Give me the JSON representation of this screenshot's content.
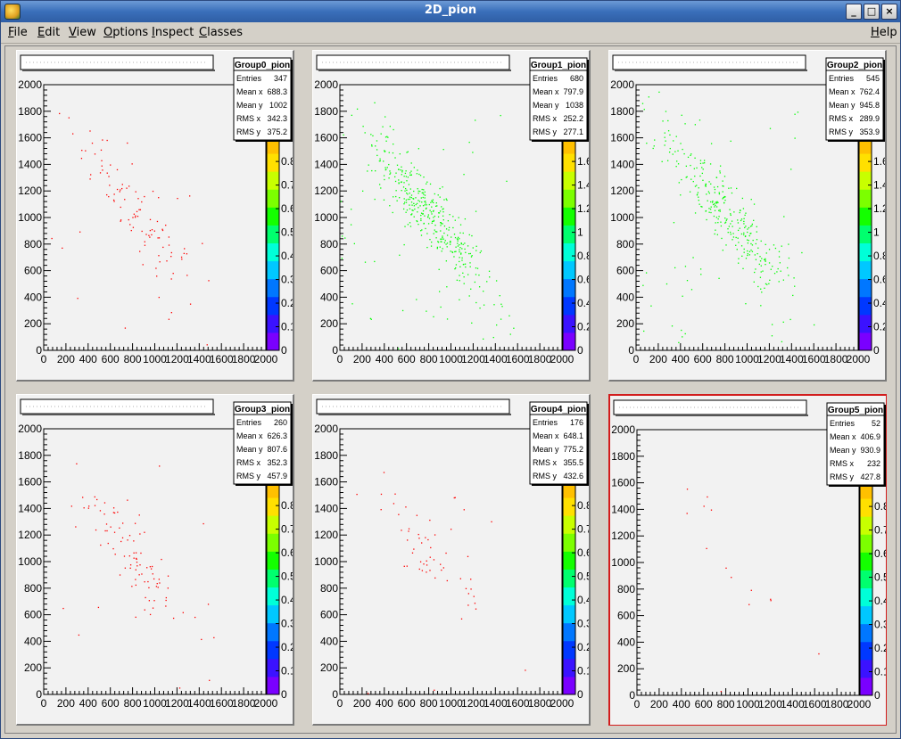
{
  "window": {
    "title": "2D_pion",
    "buttons": {
      "minimize": "_",
      "maximize": "□",
      "close": "×"
    }
  },
  "menubar": {
    "items": [
      {
        "label": "File",
        "underline": "F",
        "rest": "ile"
      },
      {
        "label": "Edit",
        "underline": "E",
        "rest": "dit"
      },
      {
        "label": "View",
        "underline": "V",
        "rest": "iew"
      },
      {
        "label": "Options",
        "underline": "O",
        "rest": "ptions"
      },
      {
        "label": "Inspect",
        "underline": "I",
        "rest": "nspect"
      },
      {
        "label": "Classes",
        "underline": "C",
        "rest": "lasses"
      }
    ],
    "help": {
      "label": "Help",
      "underline": "H",
      "rest": "elp"
    }
  },
  "colors": {
    "red_points": "#ff0000",
    "green_points": "#00ff00",
    "selected_pad_border": "#d21c1c"
  },
  "axis_ticks": [
    "0",
    "200",
    "400",
    "600",
    "800",
    "1000",
    "1200",
    "1400",
    "1600",
    "1800",
    "2000"
  ],
  "pads": [
    {
      "stats": {
        "title": "Group0_pion",
        "rows": [
          [
            "Entries",
            "347"
          ],
          [
            "Mean x",
            "688.3"
          ],
          [
            "Mean y",
            "1002"
          ],
          [
            "RMS x",
            "342.3"
          ],
          [
            "RMS y",
            "375.2"
          ]
        ]
      },
      "cbar_labels": [
        "0",
        "0.1",
        "0.2",
        "0.3",
        "0.4",
        "0.5",
        "0.6",
        "0.7",
        "0.8"
      ],
      "point_color": "#ff0000",
      "selected": false
    },
    {
      "stats": {
        "title": "Group1_pion",
        "rows": [
          [
            "Entries",
            "680"
          ],
          [
            "Mean x",
            "797.9"
          ],
          [
            "Mean y",
            "1038"
          ],
          [
            "RMS x",
            "252.2"
          ],
          [
            "RMS y",
            "277.1"
          ]
        ]
      },
      "cbar_labels": [
        "0",
        "0.2",
        "0.4",
        "0.6",
        "0.8",
        "1",
        "1.2",
        "1.4",
        "1.6"
      ],
      "point_color": "#00ff00",
      "selected": false
    },
    {
      "stats": {
        "title": "Group2_pion",
        "rows": [
          [
            "Entries",
            "545"
          ],
          [
            "Mean x",
            "762.4"
          ],
          [
            "Mean y",
            "945.8"
          ],
          [
            "RMS x",
            "289.9"
          ],
          [
            "RMS y",
            "353.9"
          ]
        ]
      },
      "cbar_labels": [
        "0",
        "0.2",
        "0.4",
        "0.6",
        "0.8",
        "1",
        "1.2",
        "1.4",
        "1.6"
      ],
      "point_color": "#00ff00",
      "selected": false
    },
    {
      "stats": {
        "title": "Group3_pion",
        "rows": [
          [
            "Entries",
            "260"
          ],
          [
            "Mean x",
            "626.3"
          ],
          [
            "Mean y",
            "807.6"
          ],
          [
            "RMS x",
            "352.3"
          ],
          [
            "RMS y",
            "457.9"
          ]
        ]
      },
      "cbar_labels": [
        "0",
        "0.1",
        "0.2",
        "0.3",
        "0.4",
        "0.5",
        "0.6",
        "0.7",
        "0.8"
      ],
      "point_color": "#ff0000",
      "selected": false
    },
    {
      "stats": {
        "title": "Group4_pion",
        "rows": [
          [
            "Entries",
            "176"
          ],
          [
            "Mean x",
            "648.1"
          ],
          [
            "Mean y",
            "775.2"
          ],
          [
            "RMS x",
            "355.5"
          ],
          [
            "RMS y",
            "432.6"
          ]
        ]
      },
      "cbar_labels": [
        "0",
        "0.1",
        "0.2",
        "0.3",
        "0.4",
        "0.5",
        "0.6",
        "0.7",
        "0.8"
      ],
      "point_color": "#ff0000",
      "selected": false
    },
    {
      "stats": {
        "title": "Group5_pion",
        "rows": [
          [
            "Entries",
            "52"
          ],
          [
            "Mean x",
            "406.9"
          ],
          [
            "Mean y",
            "930.9"
          ],
          [
            "RMS x",
            "232"
          ],
          [
            "RMS y",
            "427.8"
          ]
        ]
      },
      "cbar_labels": [
        "0",
        "0.1",
        "0.2",
        "0.3",
        "0.4",
        "0.5",
        "0.6",
        "0.7",
        "0.8"
      ],
      "point_color": "#ff0000",
      "selected": true
    }
  ]
}
